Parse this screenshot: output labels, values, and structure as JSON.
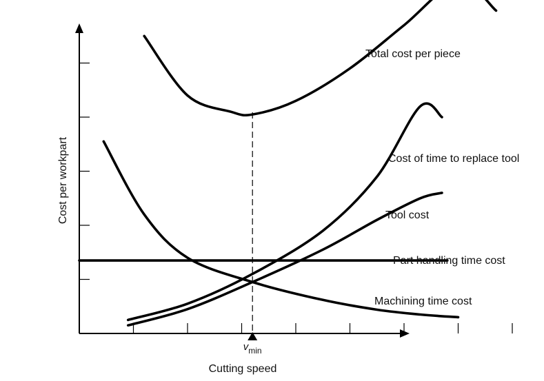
{
  "chart_data": {
    "type": "line",
    "title": "",
    "xlabel": "Cutting speed",
    "ylabel": "Cost per workpart",
    "xlim": [
      0,
      10
    ],
    "ylim": [
      0,
      10
    ],
    "x_ticks": [
      1,
      2,
      3,
      4,
      5,
      6,
      7,
      8
    ],
    "y_ticks": [
      1,
      2,
      3,
      4,
      5
    ],
    "marker": {
      "label_main": "v",
      "label_sub": "min",
      "x": 3.2
    },
    "grid": false,
    "legend": "none",
    "line_color": "#000000",
    "series": [
      {
        "name": "Total cost per piece",
        "points": [
          [
            1.2,
            5.5
          ],
          [
            2.0,
            4.4
          ],
          [
            2.8,
            4.1
          ],
          [
            3.2,
            4.05
          ],
          [
            4.0,
            4.3
          ],
          [
            5.0,
            4.9
          ],
          [
            6.0,
            5.7
          ],
          [
            7.0,
            6.5
          ],
          [
            7.7,
            5.97
          ]
        ],
        "label_position": "top-right"
      },
      {
        "name": "Cost of time to replace tool",
        "points": [
          [
            0.9,
            0.25
          ],
          [
            2.0,
            0.55
          ],
          [
            3.2,
            1.1
          ],
          [
            4.5,
            1.9
          ],
          [
            5.5,
            2.9
          ],
          [
            6.3,
            4.2
          ],
          [
            6.7,
            4.0
          ]
        ],
        "label_position": "right"
      },
      {
        "name": "Tool cost",
        "points": [
          [
            0.9,
            0.15
          ],
          [
            2.0,
            0.45
          ],
          [
            3.2,
            0.95
          ],
          [
            4.5,
            1.55
          ],
          [
            5.5,
            2.1
          ],
          [
            6.3,
            2.5
          ],
          [
            6.7,
            2.6
          ]
        ],
        "label_position": "right"
      },
      {
        "name": "Part handling time cost",
        "points": [
          [
            0.0,
            1.35
          ],
          [
            6.8,
            1.35
          ]
        ],
        "label_position": "right"
      },
      {
        "name": "Machining time cost",
        "points": [
          [
            0.45,
            3.55
          ],
          [
            1.2,
            2.2
          ],
          [
            2.0,
            1.4
          ],
          [
            3.2,
            0.95
          ],
          [
            4.5,
            0.62
          ],
          [
            5.5,
            0.44
          ],
          [
            6.3,
            0.35
          ],
          [
            7.0,
            0.3
          ]
        ],
        "label_position": "right"
      }
    ]
  }
}
